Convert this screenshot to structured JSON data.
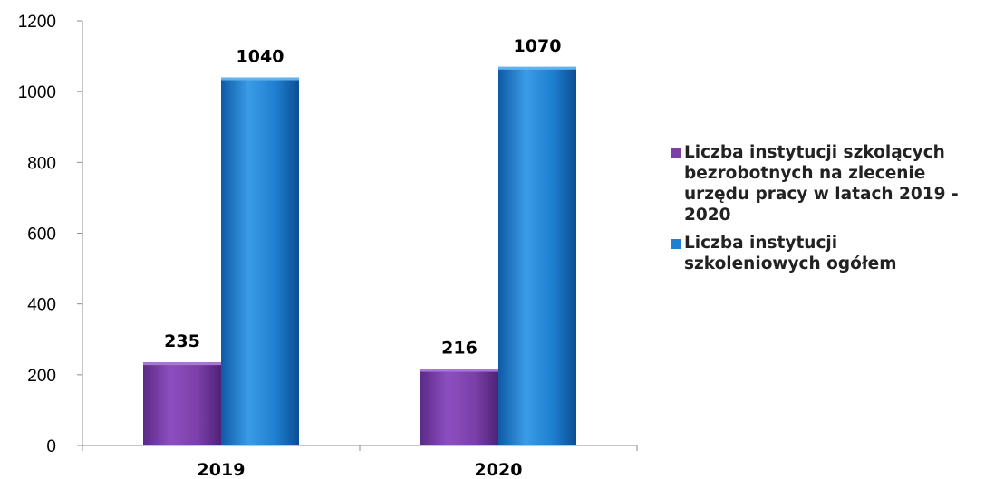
{
  "chart_data": {
    "type": "bar",
    "categories": [
      "2019",
      "2020"
    ],
    "series": [
      {
        "name": "Liczba instytucji  szkolących bezrobotnych na zlecenie urzędu pracy w latach 2019 - 2020",
        "values": [
          235,
          216
        ],
        "color": "#7b3fa8"
      },
      {
        "name": "Liczba instytucji szkoleniowych ogółem",
        "values": [
          1040,
          1070
        ],
        "color": "#1f7fd0"
      }
    ],
    "ylim": [
      0,
      1200
    ],
    "yticks": [
      "0",
      "200",
      "400",
      "600",
      "800",
      "1000",
      "1200"
    ],
    "data_labels": [
      [
        "235",
        "216"
      ],
      [
        "1040",
        "1070"
      ]
    ],
    "legend_position": "right",
    "grid": false
  }
}
